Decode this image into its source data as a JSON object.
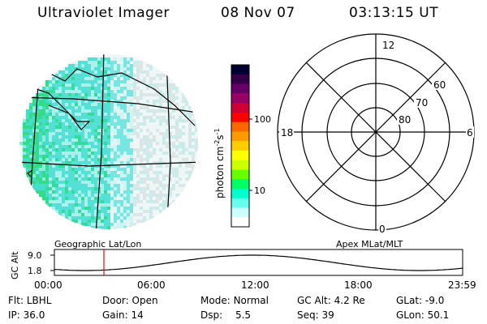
{
  "header": {
    "title": "Ultraviolet Imager",
    "date": "08 Nov 07",
    "time": "03:13:15 UT"
  },
  "colorbar": {
    "label": "photon cm",
    "label_sup1": "-2",
    "label_mid": "s",
    "label_sup2": "-1",
    "ticks": [
      {
        "value": 100,
        "label": "100"
      },
      {
        "value": 10,
        "label": "10"
      }
    ],
    "colors": [
      "#000033",
      "#330044",
      "#660066",
      "#990066",
      "#cc0033",
      "#ff0000",
      "#ff6600",
      "#ff9900",
      "#ffcc00",
      "#ffff00",
      "#ccff00",
      "#66ff00",
      "#00ff66",
      "#00ffcc",
      "#66ffee",
      "#ccffff",
      "#ffffff"
    ]
  },
  "left_panel": {
    "caption": "Geographic Lat/Lon"
  },
  "polar_plot": {
    "caption": "Apex MLat/MLT",
    "mlt_labels": [
      {
        "text": "12",
        "pos": "top"
      },
      {
        "text": "18",
        "pos": "left"
      },
      {
        "text": "6",
        "pos": "right"
      },
      {
        "text": "0",
        "pos": "bottom"
      }
    ],
    "lat_labels": [
      "60",
      "70",
      "80"
    ]
  },
  "altitude_plot": {
    "ylabel": "GC Alt",
    "yticks": [
      "9.0",
      "1.8"
    ],
    "xticks": [
      "00:00",
      "06:00",
      "12:00",
      "18:00",
      "23:59"
    ],
    "marker_color": "#ff0000"
  },
  "status": {
    "rows": [
      [
        {
          "k": "Flt:",
          "v": "LBHL"
        },
        {
          "k": "Door:",
          "v": "Open"
        },
        {
          "k": "Mode:",
          "v": "Normal"
        },
        {
          "k": "GC Alt:",
          "v": "4.2 Re"
        },
        {
          "k": "GLat:",
          "v": "-9.0"
        }
      ],
      [
        {
          "k": "IP:",
          "v": "36.0"
        },
        {
          "k": "Gain:",
          "v": "14"
        },
        {
          "k": "Dsp:",
          "v": "5.5"
        },
        {
          "k": "Seq:",
          "v": "39"
        },
        {
          "k": "GLon:",
          "v": "50.1"
        }
      ]
    ]
  }
}
